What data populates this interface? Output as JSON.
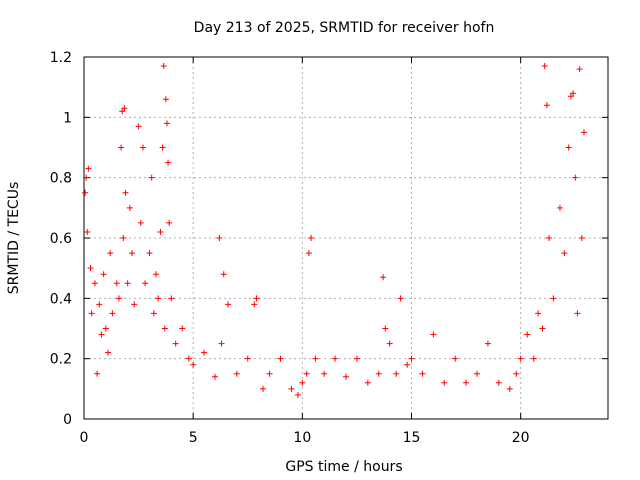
{
  "chart_data": {
    "type": "scatter",
    "title": "Day 213 of 2025, SRMTID for receiver hofn",
    "xlabel": "GPS time / hours",
    "ylabel": "SRMTID / TECUs",
    "xlim": [
      0,
      24
    ],
    "ylim": [
      0,
      1.2
    ],
    "x_ticks": [
      0,
      5,
      10,
      15,
      20
    ],
    "x_tick_labels": [
      "0",
      "5",
      "10",
      "15",
      "20"
    ],
    "y_ticks": [
      0,
      0.2,
      0.4,
      0.6,
      0.8,
      1,
      1.2
    ],
    "y_tick_labels": [
      "0",
      "0.2",
      "0.4",
      "0.6",
      "0.8",
      "1",
      "1.2"
    ],
    "grid": true,
    "marker": "plus",
    "series": [
      {
        "name": "SRMTID",
        "color": "#ff0000",
        "x": [
          0.05,
          0.1,
          0.15,
          0.2,
          0.3,
          0.35,
          0.5,
          0.6,
          0.7,
          0.8,
          0.9,
          1.0,
          1.1,
          1.2,
          1.3,
          1.5,
          1.6,
          1.7,
          1.75,
          1.8,
          1.85,
          1.9,
          2.0,
          2.1,
          2.2,
          2.3,
          2.5,
          2.6,
          2.7,
          2.8,
          3.0,
          3.1,
          3.2,
          3.3,
          3.4,
          3.5,
          3.6,
          3.65,
          3.7,
          3.75,
          3.8,
          3.85,
          3.9,
          4.0,
          4.2,
          4.5,
          4.8,
          5.0,
          5.5,
          6.0,
          6.2,
          6.3,
          6.4,
          6.6,
          7.0,
          7.5,
          7.8,
          7.9,
          8.2,
          8.5,
          9.0,
          9.5,
          9.8,
          10.0,
          10.2,
          10.3,
          10.4,
          10.6,
          11.0,
          11.5,
          12.0,
          12.5,
          13.0,
          13.5,
          13.7,
          13.8,
          14.0,
          14.3,
          14.5,
          14.8,
          15.0,
          15.5,
          16.0,
          16.5,
          17.0,
          17.5,
          18.0,
          18.5,
          19.0,
          19.5,
          19.8,
          20.0,
          20.3,
          20.6,
          20.8,
          21.0,
          21.1,
          21.2,
          21.3,
          21.5,
          21.8,
          22.0,
          22.2,
          22.3,
          22.4,
          22.5,
          22.6,
          22.7,
          22.8,
          22.9
        ],
        "y": [
          0.75,
          0.8,
          0.62,
          0.83,
          0.5,
          0.35,
          0.45,
          0.15,
          0.38,
          0.28,
          0.48,
          0.3,
          0.22,
          0.55,
          0.35,
          0.45,
          0.4,
          0.9,
          1.02,
          0.6,
          1.03,
          0.75,
          0.45,
          0.7,
          0.55,
          0.38,
          0.97,
          0.65,
          0.9,
          0.45,
          0.55,
          0.8,
          0.35,
          0.48,
          0.4,
          0.62,
          0.9,
          1.17,
          0.3,
          1.06,
          0.98,
          0.85,
          0.65,
          0.4,
          0.25,
          0.3,
          0.2,
          0.18,
          0.22,
          0.14,
          0.6,
          0.25,
          0.48,
          0.38,
          0.15,
          0.2,
          0.38,
          0.4,
          0.1,
          0.15,
          0.2,
          0.1,
          0.08,
          0.12,
          0.15,
          0.55,
          0.6,
          0.2,
          0.15,
          0.2,
          0.14,
          0.2,
          0.12,
          0.15,
          0.47,
          0.3,
          0.25,
          0.15,
          0.4,
          0.18,
          0.2,
          0.15,
          0.28,
          0.12,
          0.2,
          0.12,
          0.15,
          0.25,
          0.12,
          0.1,
          0.15,
          0.2,
          0.28,
          0.2,
          0.35,
          0.3,
          1.17,
          1.04,
          0.6,
          0.4,
          0.7,
          0.55,
          0.9,
          1.07,
          1.08,
          0.8,
          0.35,
          1.16,
          0.6,
          0.95
        ]
      }
    ]
  }
}
